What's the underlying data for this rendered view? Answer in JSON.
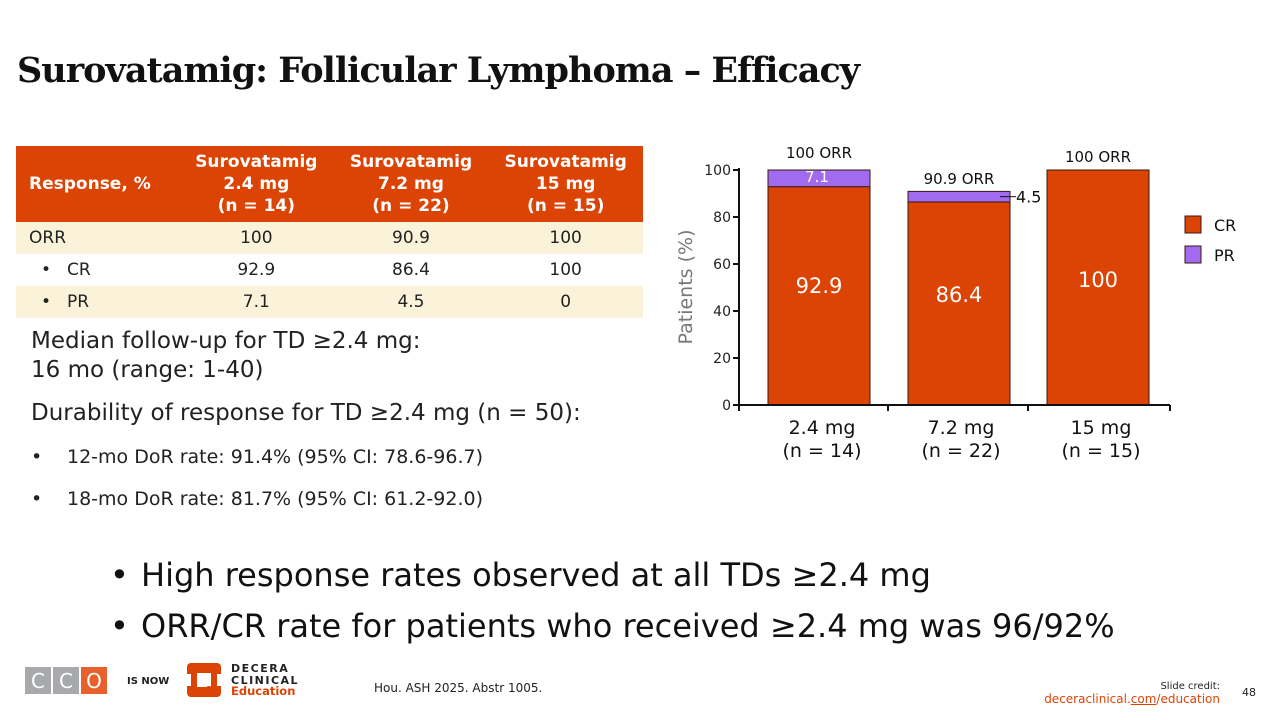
{
  "slide": {
    "title": "Surovatamig: Follicular Lymphoma – Efficacy",
    "page_number": "48"
  },
  "colors": {
    "accent": "#dc4405",
    "pr": "#a26bef",
    "shade": "#fbf3d9"
  },
  "table": {
    "headers": [
      {
        "lines": [
          "Response, %"
        ]
      },
      {
        "lines": [
          "Surovatamig",
          "2.4 mg",
          "(n = 14)"
        ]
      },
      {
        "lines": [
          "Surovatamig",
          "7.2 mg",
          "(n = 22)"
        ]
      },
      {
        "lines": [
          "Surovatamig",
          "15 mg",
          "(n = 15)"
        ]
      }
    ],
    "rows": [
      {
        "label": "ORR",
        "bullet": false,
        "values": [
          "100",
          "90.9",
          "100"
        ]
      },
      {
        "label": "CR",
        "bullet": true,
        "values": [
          "92.9",
          "86.4",
          "100"
        ]
      },
      {
        "label": "PR",
        "bullet": true,
        "values": [
          "7.1",
          "4.5",
          "0"
        ]
      }
    ]
  },
  "notes": {
    "followup_line1": "Median follow-up for TD ≥2.4 mg:",
    "followup_line2": "16 mo (range: 1-40)",
    "durability_heading": "Durability of response for TD ≥2.4 mg (n = 50):",
    "bullet_char": "•",
    "durability_items": [
      "12-mo DoR rate: 91.4% (95% CI: 78.6-96.7)",
      "18-mo DoR rate: 81.7% (95% CI: 61.2-92.0)"
    ]
  },
  "takeaways": [
    "High response rates observed at all TDs ≥2.4 mg",
    "ORR/CR rate for patients who received ≥2.4 mg was 96/92%"
  ],
  "footer": {
    "cco_letters": [
      "C",
      "C",
      "O"
    ],
    "is_now": "IS NOW",
    "decera_line1": "DECERA",
    "decera_line2": "CLINICAL",
    "decera_line3": "Education",
    "citation": "Hou. ASH 2025. Abstr 1005.",
    "credit_label": "Slide credit:",
    "credit_link_pre": "deceraclinical.",
    "credit_link_mid": "com",
    "credit_link_post": "/education"
  },
  "chart_data": {
    "type": "bar",
    "stacked": true,
    "categories": [
      "2.4 mg\n(n = 14)",
      "7.2 mg\n(n = 22)",
      "15 mg\n(n = 15)"
    ],
    "category_lines": [
      [
        "2.4 mg",
        "(n = 14)"
      ],
      [
        "7.2 mg",
        "(n = 22)"
      ],
      [
        "15 mg",
        "(n = 15)"
      ]
    ],
    "series": [
      {
        "name": "CR",
        "color": "#dc4405",
        "values": [
          92.9,
          86.4,
          100
        ],
        "labels": [
          "92.9",
          "86.4",
          "100"
        ]
      },
      {
        "name": "PR",
        "color": "#a26bef",
        "values": [
          7.1,
          4.5,
          0
        ],
        "labels": [
          "7.1",
          "4.5",
          ""
        ]
      }
    ],
    "totals_labels": [
      "100 ORR",
      "90.9 ORR",
      "100 ORR"
    ],
    "totals": [
      100,
      90.9,
      100
    ],
    "ylabel": "Patients (%)",
    "xlabel": "",
    "ylim": [
      0,
      100
    ],
    "yticks": [
      0,
      20,
      40,
      60,
      80,
      100
    ],
    "grid": false,
    "legend": {
      "position": "right",
      "entries": [
        "CR",
        "PR"
      ]
    }
  }
}
